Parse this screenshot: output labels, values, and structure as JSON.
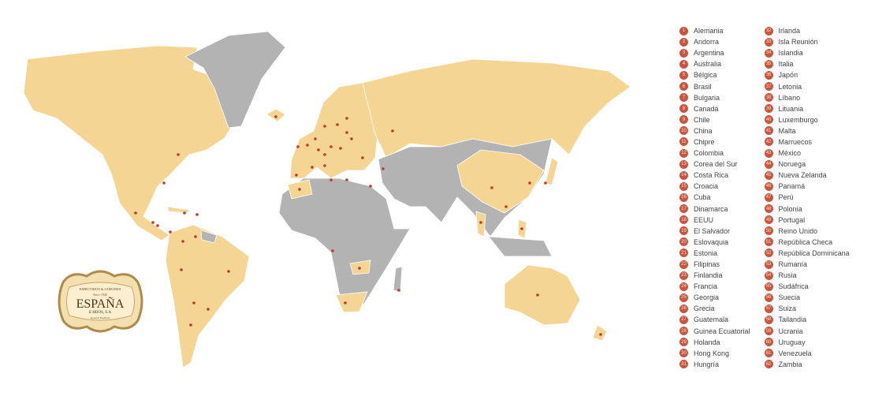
{
  "colors": {
    "highlighted": "#f5d594",
    "other": "#b3b3b3",
    "marker": "#c0392b",
    "legend_badge": "#c8553d"
  },
  "logo": {
    "line1": "EMBUTIDOS & JAMONES",
    "line2": "Since 1946",
    "brand": "ESPAÑA",
    "line3": "E HIJOS, S.A",
    "line4": "Spanish Tradition"
  },
  "legend": {
    "column1": [
      {
        "n": "1",
        "name": "Alemania"
      },
      {
        "n": "2",
        "name": "Andorra"
      },
      {
        "n": "3",
        "name": "Argentina"
      },
      {
        "n": "4",
        "name": "Australia"
      },
      {
        "n": "5",
        "name": "Bélgica"
      },
      {
        "n": "6",
        "name": "Brasil"
      },
      {
        "n": "7",
        "name": "Bulgaria"
      },
      {
        "n": "8",
        "name": "Canadá"
      },
      {
        "n": "9",
        "name": "Chile"
      },
      {
        "n": "10",
        "name": "China"
      },
      {
        "n": "11",
        "name": "Chipre"
      },
      {
        "n": "12",
        "name": "Colombia"
      },
      {
        "n": "13",
        "name": "Corea del Sur"
      },
      {
        "n": "14",
        "name": "Costa Rica"
      },
      {
        "n": "15",
        "name": "Croacia"
      },
      {
        "n": "16",
        "name": "Cuba"
      },
      {
        "n": "17",
        "name": "Dinamarca"
      },
      {
        "n": "18",
        "name": "EEUU"
      },
      {
        "n": "19",
        "name": "El Salvador"
      },
      {
        "n": "20",
        "name": "Eslovaquia"
      },
      {
        "n": "21",
        "name": "Estonia"
      },
      {
        "n": "22",
        "name": "Filipinas"
      },
      {
        "n": "23",
        "name": "Finlandia"
      },
      {
        "n": "24",
        "name": "Francia"
      },
      {
        "n": "25",
        "name": "Georgia"
      },
      {
        "n": "26",
        "name": "Grecia"
      },
      {
        "n": "27",
        "name": "Guatemala"
      },
      {
        "n": "28",
        "name": "Guinea Ecuatorial"
      },
      {
        "n": "29",
        "name": "Holanda"
      },
      {
        "n": "30",
        "name": "Hong Kong"
      },
      {
        "n": "31",
        "name": "Hungría"
      }
    ],
    "column2": [
      {
        "n": "32",
        "name": "Irlanda"
      },
      {
        "n": "33",
        "name": "Isla Reunión"
      },
      {
        "n": "34",
        "name": "Islandia"
      },
      {
        "n": "35",
        "name": "Italia"
      },
      {
        "n": "36",
        "name": "Japón"
      },
      {
        "n": "37",
        "name": "Letonia"
      },
      {
        "n": "38",
        "name": "Líbano"
      },
      {
        "n": "39",
        "name": "Lituania"
      },
      {
        "n": "40",
        "name": "Luxemburgo"
      },
      {
        "n": "41",
        "name": "Malta"
      },
      {
        "n": "42",
        "name": "Marruecos"
      },
      {
        "n": "43",
        "name": "México"
      },
      {
        "n": "44",
        "name": "Noruega"
      },
      {
        "n": "45",
        "name": "Nueva Zelanda"
      },
      {
        "n": "46",
        "name": "Panamá"
      },
      {
        "n": "47",
        "name": "Perú"
      },
      {
        "n": "48",
        "name": "Polonia"
      },
      {
        "n": "49",
        "name": "Portugal"
      },
      {
        "n": "50",
        "name": "Reino Unido"
      },
      {
        "n": "51",
        "name": "República Checa"
      },
      {
        "n": "52",
        "name": "República Dominicana"
      },
      {
        "n": "53",
        "name": "Rumanía"
      },
      {
        "n": "54",
        "name": "Rusia"
      },
      {
        "n": "55",
        "name": "Sudáfrica"
      },
      {
        "n": "56",
        "name": "Suecia"
      },
      {
        "n": "57",
        "name": "Suiza"
      },
      {
        "n": "58",
        "name": "Tailandia"
      },
      {
        "n": "59",
        "name": "Ucrania"
      },
      {
        "n": "60",
        "name": "Uruguay"
      },
      {
        "n": "61",
        "name": "Venezuela"
      },
      {
        "n": "62",
        "name": "Zambia"
      }
    ]
  }
}
